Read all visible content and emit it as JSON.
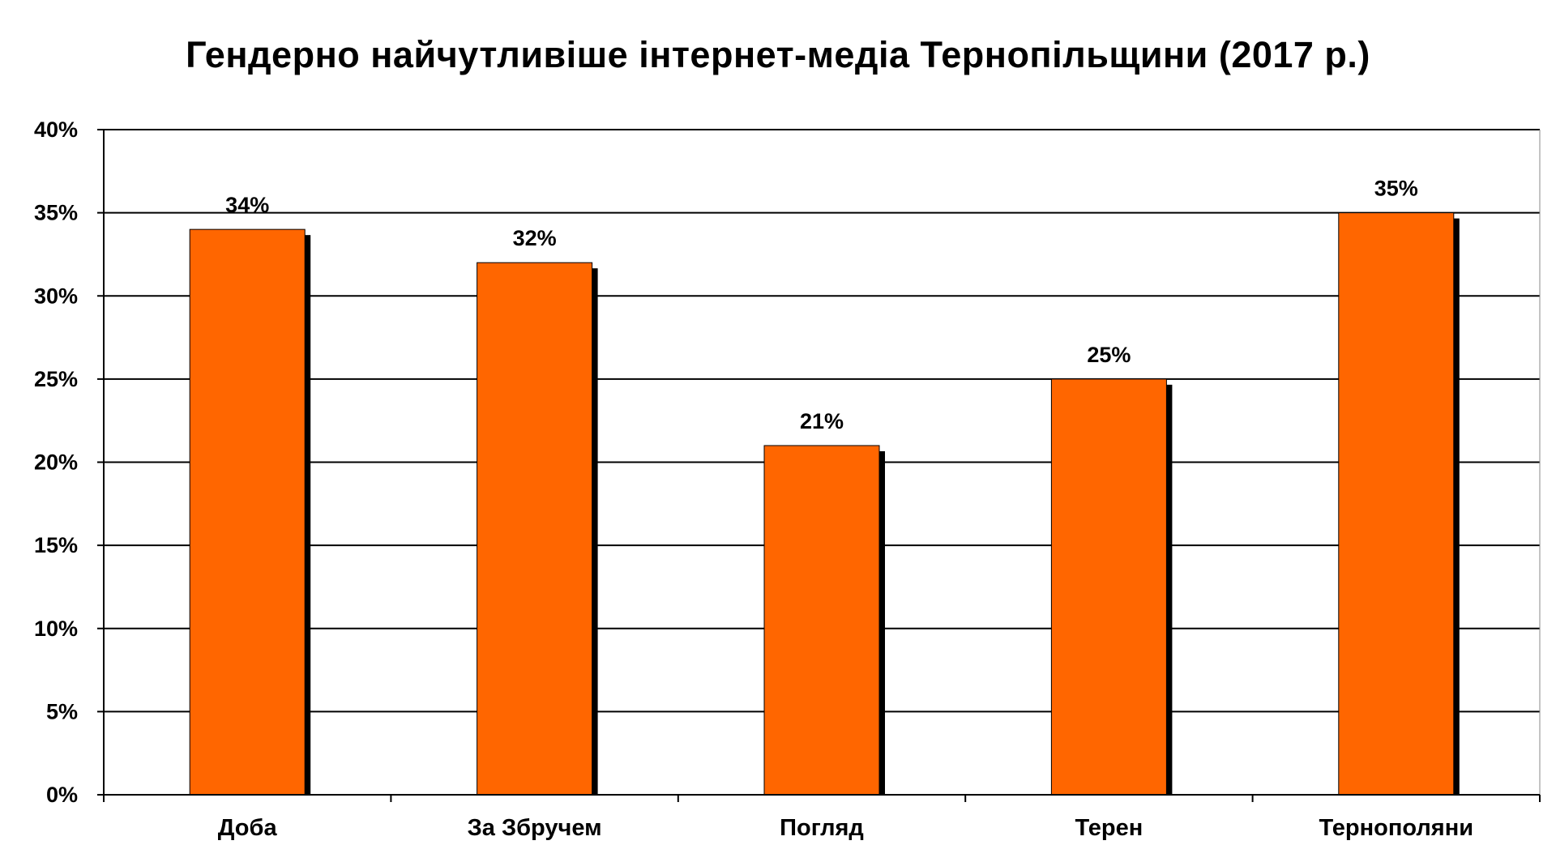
{
  "chart_data": {
    "type": "bar",
    "title": "Гендерно найчутливіше інтернет-медіа Тернопільщини (2017 р.)",
    "categories": [
      "Доба",
      "За Збручем",
      "Погляд",
      "Терен",
      "Тернополяни"
    ],
    "values": [
      34,
      32,
      21,
      25,
      35
    ],
    "data_labels": [
      "34%",
      "32%",
      "21%",
      "25%",
      "35%"
    ],
    "ylim": [
      0,
      40
    ],
    "yticks": [
      0,
      5,
      10,
      15,
      20,
      25,
      30,
      35,
      40
    ],
    "ytick_labels": [
      "0%",
      "5%",
      "10%",
      "15%",
      "20%",
      "25%",
      "30%",
      "35%",
      "40%"
    ],
    "xlabel": "",
    "ylabel": "",
    "grid": true,
    "legend": "none",
    "colors": {
      "bar": "#FF6600",
      "shadow": "#000000",
      "grid": "#000000"
    }
  }
}
